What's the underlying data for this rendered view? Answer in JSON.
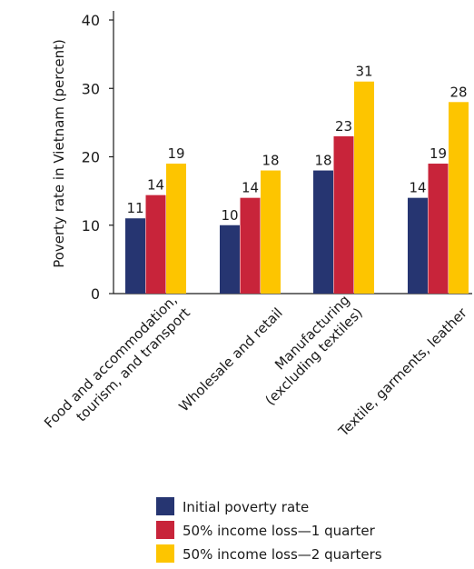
{
  "chart_data": {
    "type": "bar",
    "title": "",
    "xlabel": "",
    "ylabel": "Poverty rate in Vietnam (percent)",
    "ylim": [
      0,
      40
    ],
    "yticks": [
      0,
      10,
      20,
      30,
      40
    ],
    "grid": false,
    "legend_position": "bottom",
    "categories": [
      [
        "Food and accommodation,",
        "tourism, and transport"
      ],
      [
        "Wholesale and retail"
      ],
      [
        "Manufacturing",
        "(excluding textiles)"
      ],
      [
        "Textile, garments, leather"
      ]
    ],
    "series": [
      {
        "name": "Initial poverty rate",
        "color": "#263571",
        "values": [
          11,
          10,
          18,
          14
        ],
        "labels": [
          "11",
          "10",
          "18",
          "14"
        ]
      },
      {
        "name": "50% income loss—1 quarter",
        "color": "#c8243a",
        "values": [
          14.4,
          14,
          23,
          19
        ],
        "labels": [
          "14",
          "14",
          "23",
          "19"
        ]
      },
      {
        "name": "50% income loss—2 quarters",
        "color": "#fdc500",
        "values": [
          19,
          18,
          31,
          28
        ],
        "labels": [
          "19",
          "18",
          "31",
          "28"
        ]
      }
    ]
  }
}
